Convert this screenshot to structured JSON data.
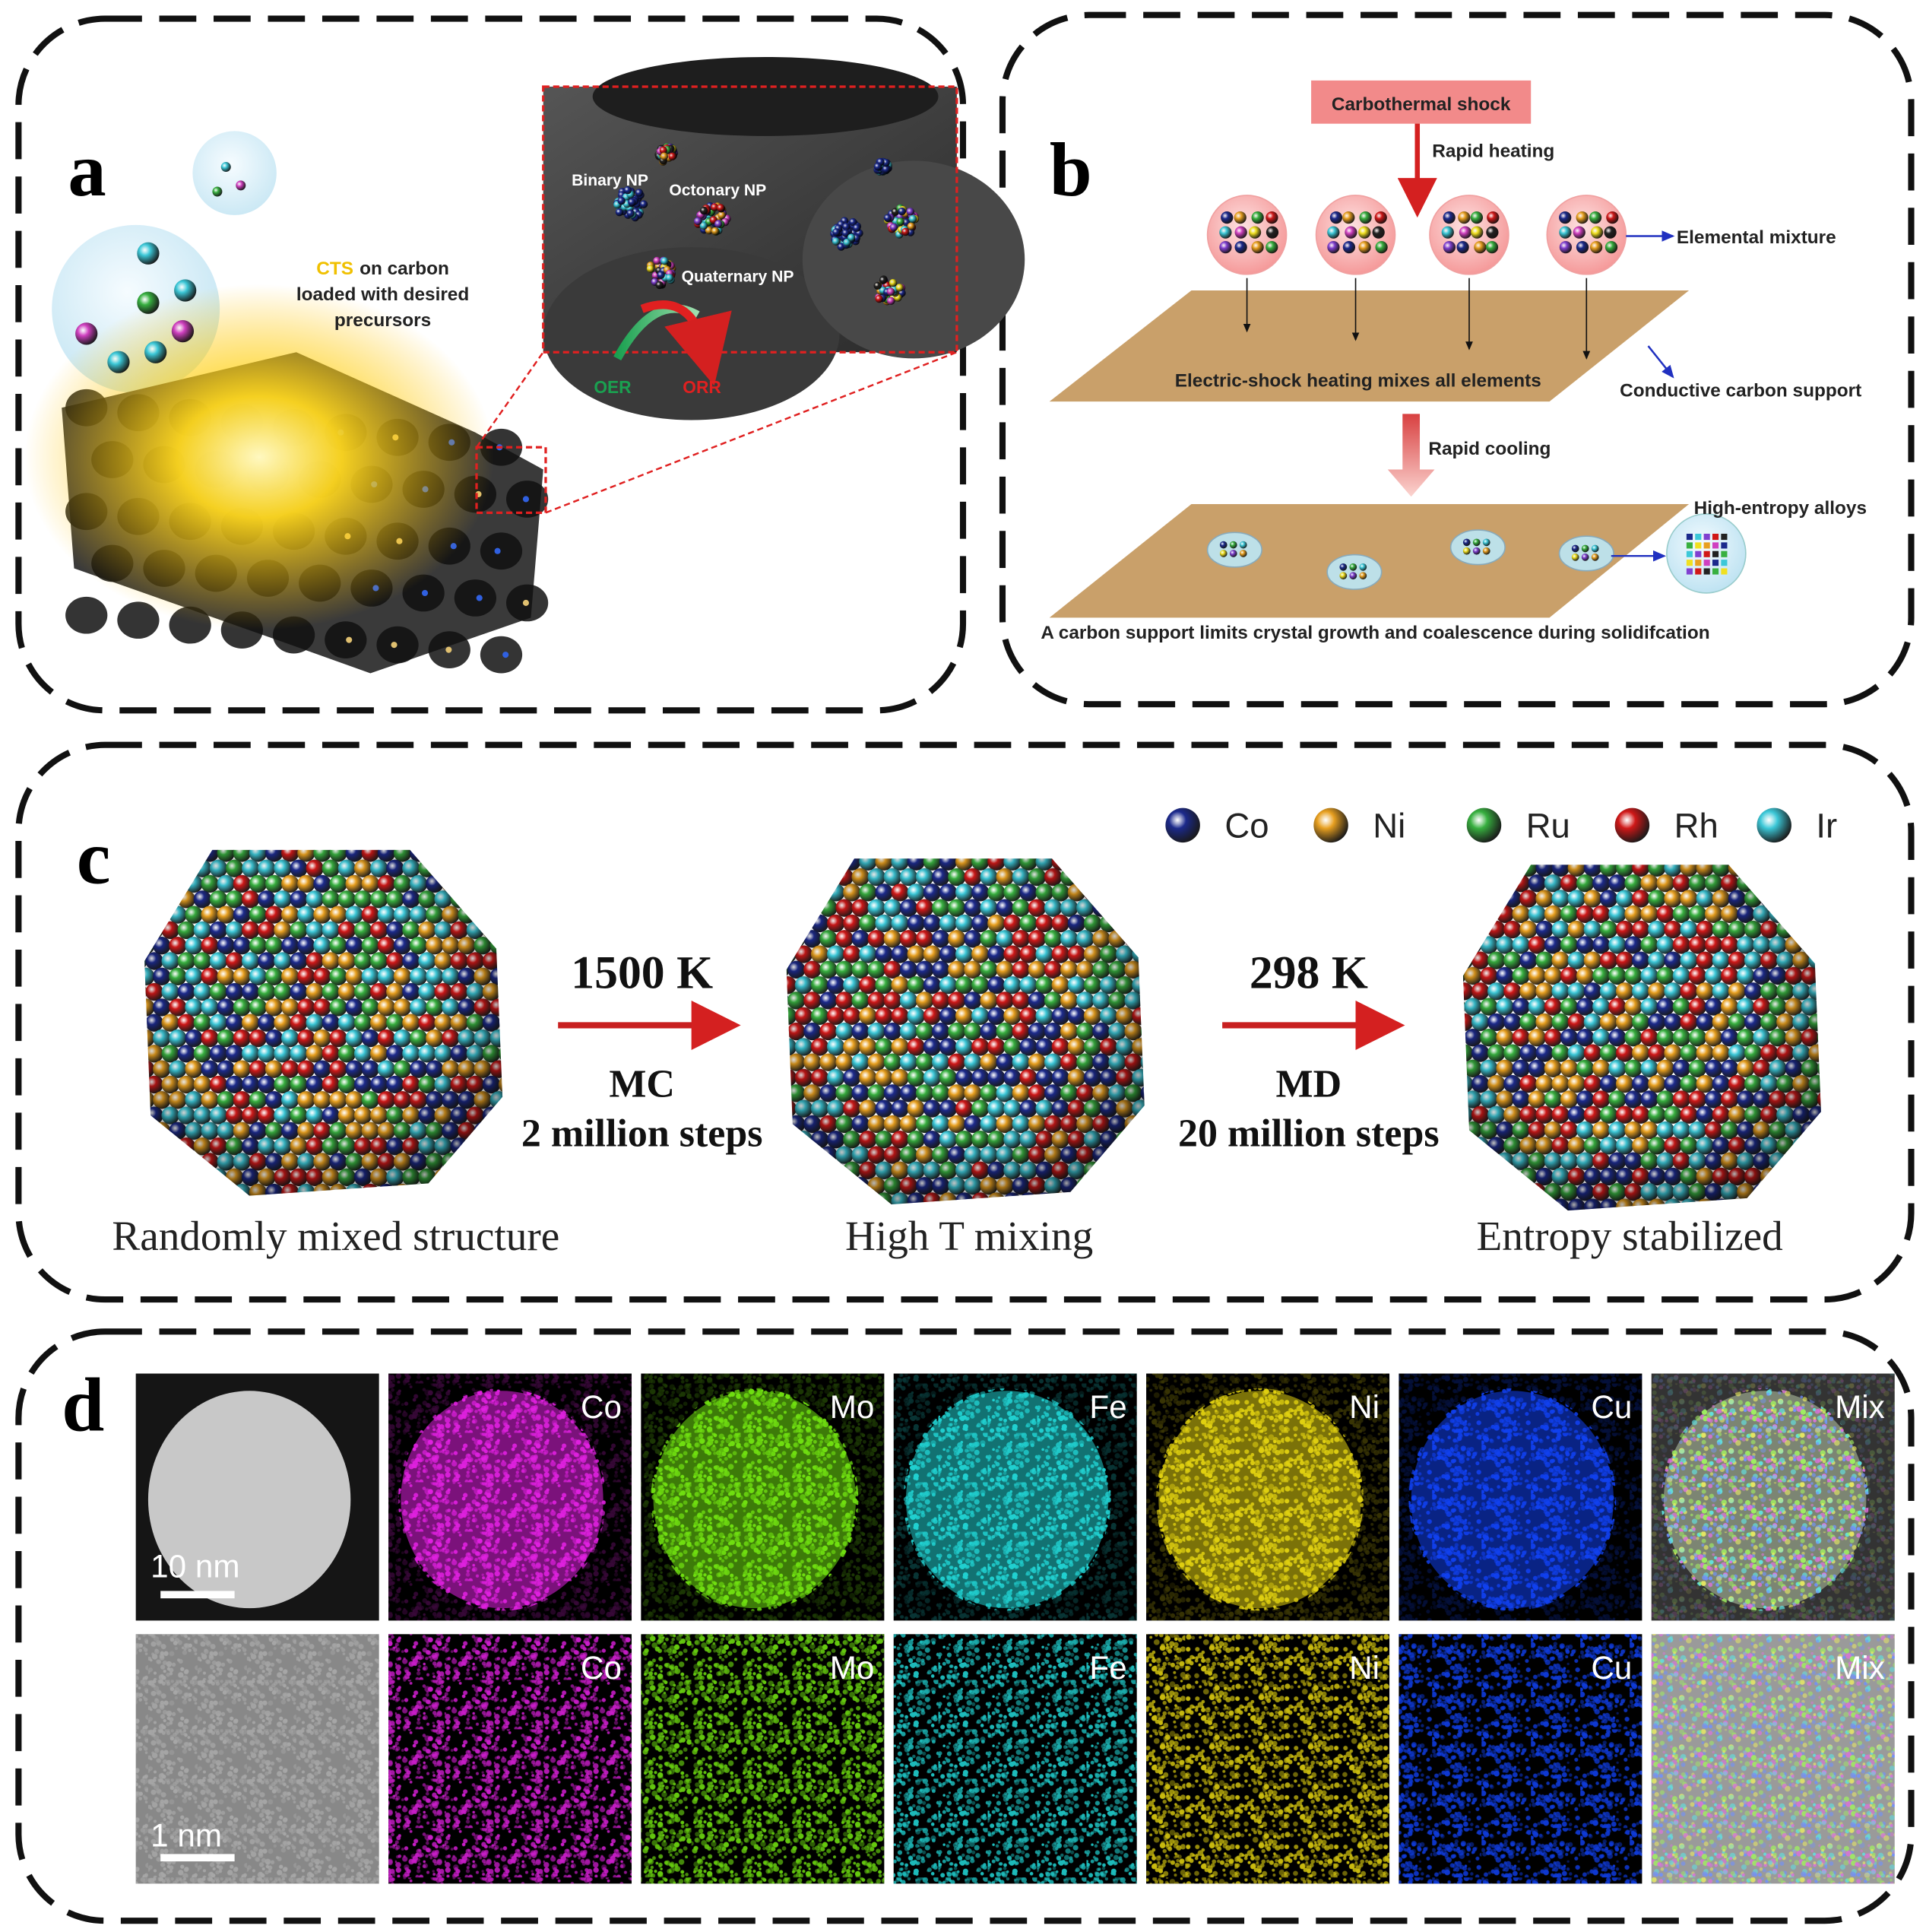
{
  "panel_a": {
    "label": "a",
    "precursor_label": {
      "highlight": "CTS",
      "rest": "on carbon",
      "line2": "loaded with desired",
      "line3": "precursors"
    },
    "inset": {
      "binary": "Binary NP",
      "octonary": "Octonary NP",
      "quaternary": "Quaternary NP",
      "oer": "OER",
      "orr": "ORR"
    }
  },
  "panel_b": {
    "label": "b",
    "shock": "Carbothermal shock",
    "heating": "Rapid heating",
    "mixture": "Elemental mixture",
    "mixing": "Electric-shock heating mixes all elements",
    "support": "Conductive carbon support",
    "cooling": "Rapid cooling",
    "alloys": "High-entropy alloys",
    "caption": "A carbon support limits crystal growth and coalescence during solidifcation"
  },
  "panel_c": {
    "label": "c",
    "legend": [
      "Co",
      "Ni",
      "Ru",
      "Rh",
      "Ir"
    ],
    "steps": [
      {
        "temperature": "1500 K",
        "method": "MC",
        "duration": "2 million steps"
      },
      {
        "temperature": "298 K",
        "method": "MD",
        "duration": "20 million steps"
      }
    ],
    "stages": [
      "Randomly mixed structure",
      "High T mixing",
      "Entropy stabilized"
    ]
  },
  "panel_d": {
    "label": "d",
    "rows": [
      {
        "channels": [
          "Co",
          "Mo",
          "Fe",
          "Ni",
          "Cu",
          "Mix"
        ],
        "scale_bar": "10 nm"
      },
      {
        "channels": [
          "Co",
          "Mo",
          "Fe",
          "Ni",
          "Cu",
          "Mix"
        ],
        "scale_bar": "1 nm"
      }
    ]
  }
}
